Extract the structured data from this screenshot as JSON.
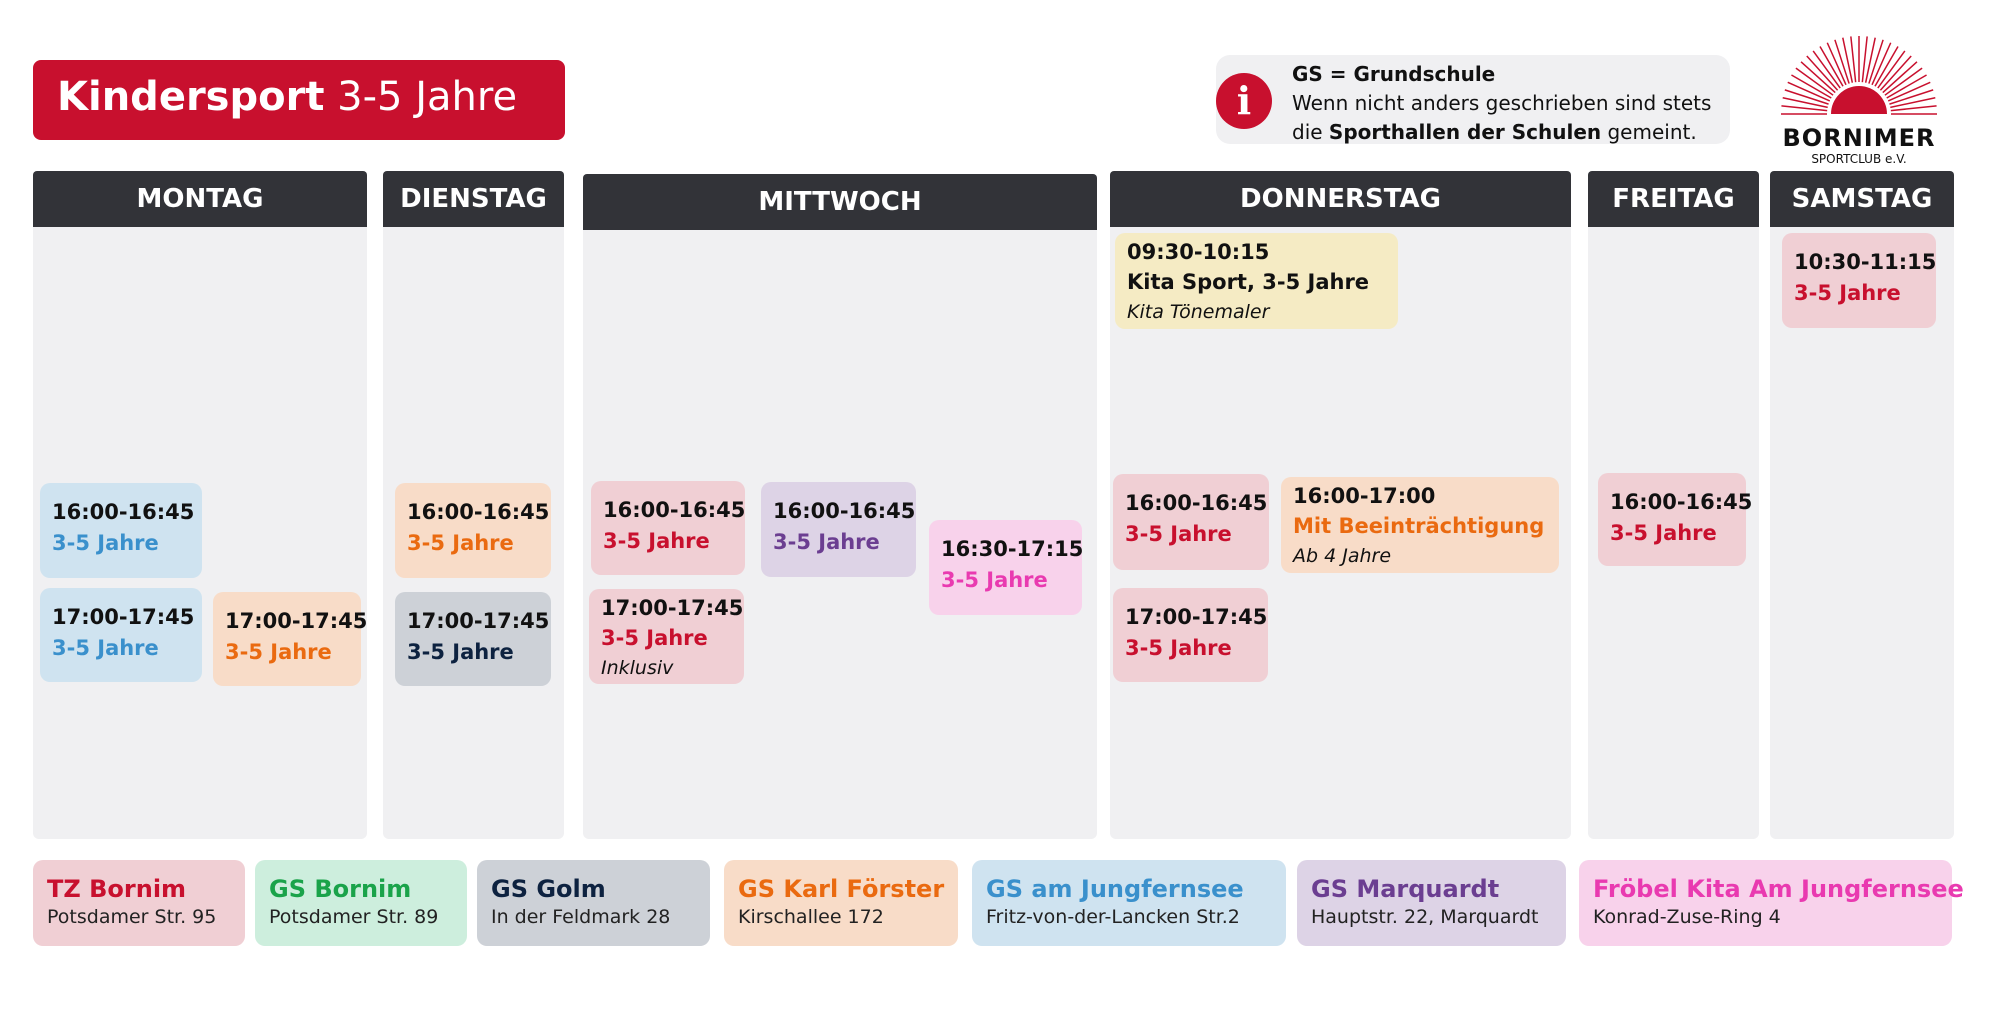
{
  "title": {
    "bold": "Kindersport",
    "rest": "3-5 Jahre"
  },
  "info": {
    "icon": "info-icon",
    "line1": "GS = Grundschule",
    "line2": "Wenn nicht anders geschrieben sind stets",
    "line3_pre": "die ",
    "line3_bold": "Sporthallen der Schulen",
    "line3_post": " gemeint."
  },
  "logo": {
    "name": "BORNIMER",
    "sub": "SPORTCLUB e.V."
  },
  "colors": {
    "red": "#c8102e",
    "green": "#1aa34a",
    "navy": "#0d2240",
    "orange": "#ea6a10",
    "blue": "#3a90cc",
    "purple": "#6b3e91",
    "pink": "#e93ab0"
  },
  "days": [
    "MONTAG",
    "DIENSTAG",
    "MITTWOCH",
    "DONNERSTAG",
    "FREITAG",
    "SAMSTAG"
  ],
  "cards": [
    {
      "time": "16:00-16:45",
      "label": "3-5 Jahre"
    },
    {
      "time": "17:00-17:45",
      "label": "3-5 Jahre"
    },
    {
      "time": "17:00-17:45",
      "label": "3-5 Jahre"
    },
    {
      "time": "16:00-16:45",
      "label": "3-5 Jahre"
    },
    {
      "time": "17:00-17:45",
      "label": "3-5 Jahre"
    },
    {
      "time": "16:00-16:45",
      "label": "3-5 Jahre"
    },
    {
      "time": "16:00-16:45",
      "label": "3-5 Jahre"
    },
    {
      "time": "16:30-17:15",
      "label": "3-5 Jahre"
    },
    {
      "time": "17:00-17:45",
      "label": "3-5 Jahre",
      "note": "Inklusiv"
    },
    {
      "time": "09:30-10:15",
      "label": "Kita Sport, 3-5 Jahre",
      "note": "Kita Tönemaler"
    },
    {
      "time": "16:00-16:45",
      "label": "3-5 Jahre"
    },
    {
      "time": "16:00-17:00",
      "label": "Mit Beeinträchtigung",
      "note": "Ab 4 Jahre"
    },
    {
      "time": "17:00-17:45",
      "label": "3-5 Jahre"
    },
    {
      "time": "16:00-16:45",
      "label": "3-5 Jahre"
    },
    {
      "time": "10:30-11:15",
      "label": "3-5 Jahre"
    }
  ],
  "legend": [
    {
      "name": "TZ Bornim",
      "address": "Potsdamer Str. 95"
    },
    {
      "name": "GS Bornim",
      "address": "Potsdamer Str. 89"
    },
    {
      "name": "GS Golm",
      "address": "In der Feldmark 28"
    },
    {
      "name": "GS Karl Förster",
      "address": "Kirschallee 172"
    },
    {
      "name": "GS am Jungfernsee",
      "address": "Fritz-von-der-Lancken Str.2"
    },
    {
      "name": "GS Marquardt",
      "address": "Hauptstr. 22, Marquardt"
    },
    {
      "name": "Fröbel Kita Am Jungfernsee",
      "address": "Konrad-Zuse-Ring 4"
    }
  ]
}
